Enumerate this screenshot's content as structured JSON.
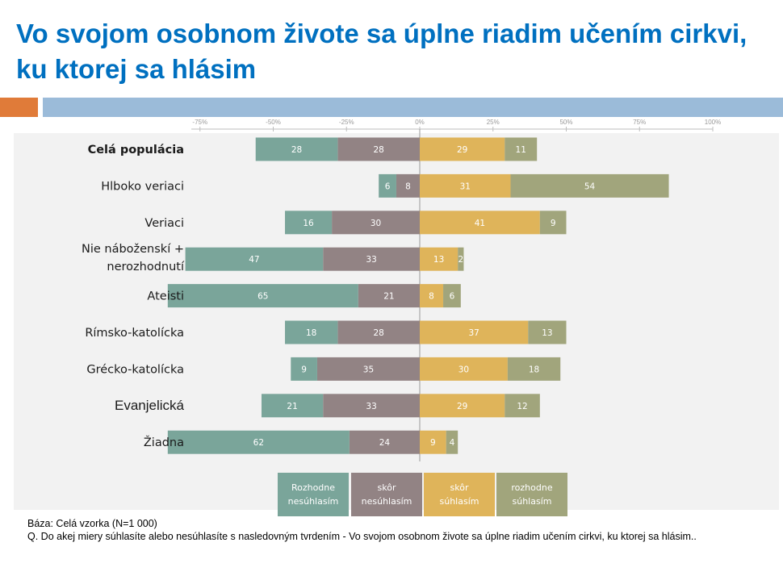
{
  "title": "Vo svojom osobnom živote sa úplne riadim učením cirkvi, ku ktorej sa hlásim",
  "footer": {
    "base": "Báza: Celá vzorka (N=1 000)",
    "question": "Q. Do akej miery súhlasíte alebo nesúhlasíte s nasledovným tvrdením -  Vo svojom osobnom živote sa úplne riadim učením cirkvi, ku ktorej sa hlásim.."
  },
  "chart_data": {
    "type": "bar",
    "orientation": "horizontal",
    "stacking": "diverging",
    "x_ticks": [
      "-75%",
      "-50%",
      "-25%",
      "0%",
      "25%",
      "50%",
      "75%",
      "100%"
    ],
    "xlim": [
      -75,
      100
    ],
    "categories": [
      {
        "lines": [
          "Celá populácia"
        ],
        "style": "bold"
      },
      {
        "lines": [
          "Hlboko veriaci"
        ],
        "style": "normal"
      },
      {
        "lines": [
          "Veriaci"
        ],
        "style": "normal"
      },
      {
        "lines": [
          "Nie náboženskí +",
          "nerozhodnutí"
        ],
        "style": "normal"
      },
      {
        "lines": [
          "Ateisti"
        ],
        "style": "normal"
      },
      {
        "lines": [
          "Rímsko-katolícka"
        ],
        "style": "normal"
      },
      {
        "lines": [
          "Grécko-katolícka"
        ],
        "style": "normal"
      },
      {
        "lines": [
          "Evanjelická"
        ],
        "style": "plain"
      },
      {
        "lines": [
          "Žiadna"
        ],
        "style": "normal"
      }
    ],
    "series": [
      {
        "name": "Rozhodne nesúhlasím",
        "side": "negative",
        "color": "#7aa59a",
        "values": [
          28,
          6,
          16,
          47,
          65,
          18,
          9,
          21,
          62
        ]
      },
      {
        "name": "skôr nesúhlasím",
        "side": "negative",
        "color": "#928384",
        "values": [
          28,
          8,
          30,
          33,
          21,
          28,
          35,
          33,
          24
        ]
      },
      {
        "name": "skôr súhlasím",
        "side": "positive",
        "color": "#dfb45a",
        "values": [
          29,
          31,
          41,
          13,
          8,
          37,
          30,
          29,
          9
        ]
      },
      {
        "name": "rozhodne súhlasím",
        "side": "positive",
        "color": "#a1a57c",
        "values": [
          11,
          54,
          9,
          2,
          6,
          13,
          18,
          12,
          4
        ]
      }
    ],
    "legend": {
      "position": "bottom",
      "items": [
        {
          "lines": [
            "Rozhodne",
            "nesúhlasím"
          ],
          "color": "#7aa59a"
        },
        {
          "lines": [
            "skôr",
            "nesúhlasím"
          ],
          "color": "#928384"
        },
        {
          "lines": [
            "skôr",
            "súhlasím"
          ],
          "color": "#dfb45a"
        },
        {
          "lines": [
            "rozhodne",
            "súhlasím"
          ],
          "color": "#a1a57c"
        }
      ]
    }
  }
}
